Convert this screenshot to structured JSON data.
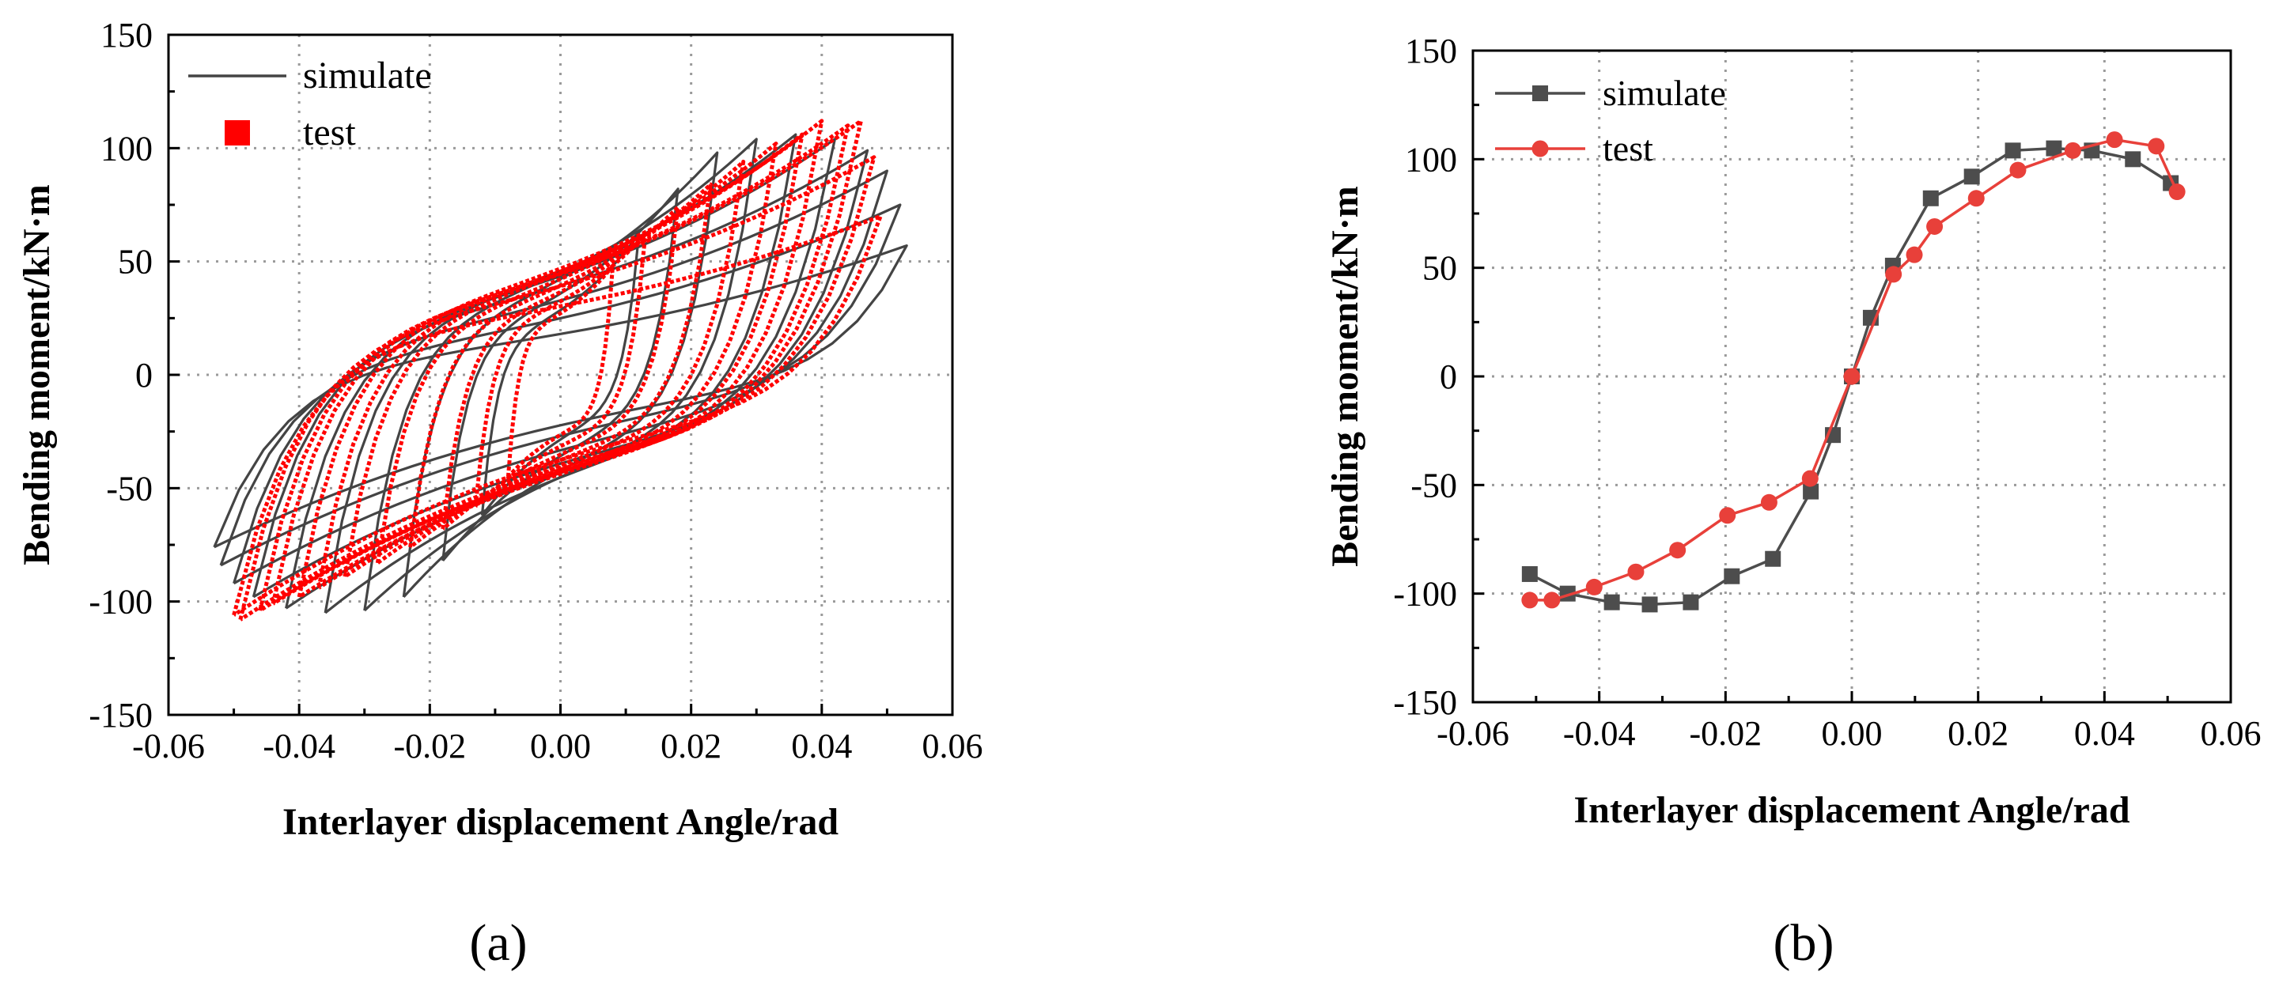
{
  "figure": {
    "label_a": "(a)",
    "label_b": "(b)"
  },
  "chart_data": [
    {
      "type": "line",
      "subtype": "hysteresis",
      "title": "",
      "xlabel": "Interlayer displacement Angle/rad",
      "ylabel": "Bending moment/kN·m",
      "xlim": [
        -0.06,
        0.06
      ],
      "ylim": [
        -150,
        150
      ],
      "xticks": [
        -0.06,
        -0.04,
        -0.02,
        0.0,
        0.02,
        0.04,
        0.06
      ],
      "xtick_labels": [
        "-0.06",
        "-0.04",
        "-0.02",
        "0.00",
        "0.02",
        "0.04",
        "0.06"
      ],
      "yticks": [
        -150,
        -100,
        -50,
        0,
        50,
        100,
        150
      ],
      "ytick_labels": [
        "-150",
        "-100",
        "-50",
        "0",
        "50",
        "100",
        "150"
      ],
      "grid": true,
      "legend": "top-left",
      "legend_entries": [
        "simulate",
        "test"
      ],
      "series": [
        {
          "name": "simulate",
          "color": "#444444",
          "marker": "none",
          "loops": [
            {
              "xp": 0.012,
              "yp": 62,
              "yk": 20,
              "xn": -0.012,
              "yn": -62
            },
            {
              "xp": 0.018,
              "yp": 82,
              "yk": 24,
              "xn": -0.018,
              "yn": -82
            },
            {
              "xp": 0.024,
              "yp": 98,
              "yk": 28,
              "xn": -0.024,
              "yn": -98
            },
            {
              "xp": 0.03,
              "yp": 104,
              "yk": 30,
              "xn": -0.03,
              "yn": -104
            },
            {
              "xp": 0.036,
              "yp": 106,
              "yk": 30,
              "xn": -0.036,
              "yn": -105
            },
            {
              "xp": 0.042,
              "yp": 104,
              "yk": 28,
              "xn": -0.042,
              "yn": -103
            },
            {
              "xp": 0.047,
              "yp": 99,
              "yk": 24,
              "xn": -0.047,
              "yn": -98
            },
            {
              "xp": 0.05,
              "yp": 90,
              "yk": 18,
              "xn": -0.05,
              "yn": -92
            },
            {
              "xp": 0.052,
              "yp": 75,
              "yk": 12,
              "xn": -0.052,
              "yn": -84
            },
            {
              "xp": 0.053,
              "yp": 57,
              "yk": 8,
              "xn": -0.053,
              "yn": -76
            }
          ]
        },
        {
          "name": "test",
          "color": "#ff0000",
          "marker": "square",
          "loops": [
            {
              "xp": 0.008,
              "yp": 48,
              "yk": 22,
              "xn": -0.008,
              "yn": -45
            },
            {
              "xp": 0.013,
              "yp": 62,
              "yk": 25,
              "xn": -0.013,
              "yn": -58
            },
            {
              "xp": 0.018,
              "yp": 74,
              "yk": 27,
              "xn": -0.018,
              "yn": -68
            },
            {
              "xp": 0.023,
              "yp": 84,
              "yk": 28,
              "xn": -0.023,
              "yn": -76
            },
            {
              "xp": 0.028,
              "yp": 94,
              "yk": 29,
              "xn": -0.028,
              "yn": -83
            },
            {
              "xp": 0.033,
              "yp": 102,
              "yk": 30,
              "xn": -0.033,
              "yn": -89
            },
            {
              "xp": 0.037,
              "yp": 106,
              "yk": 30,
              "xn": -0.037,
              "yn": -94
            },
            {
              "xp": 0.04,
              "yp": 112,
              "yk": 30,
              "xn": -0.04,
              "yn": -98
            },
            {
              "xp": 0.044,
              "yp": 110,
              "yk": 28,
              "xn": -0.044,
              "yn": -101
            },
            {
              "xp": 0.046,
              "yp": 112,
              "yk": 27,
              "xn": -0.046,
              "yn": -104
            },
            {
              "xp": 0.048,
              "yp": 96,
              "yk": 24,
              "xn": -0.049,
              "yn": -108
            },
            {
              "xp": 0.049,
              "yp": 70,
              "yk": 20,
              "xn": -0.05,
              "yn": -106
            }
          ]
        }
      ]
    },
    {
      "type": "line",
      "subtype": "skeleton",
      "title": "",
      "xlabel": "Interlayer displacement Angle/rad",
      "ylabel": "Bending moment/kN·m",
      "xlim": [
        -0.06,
        0.06
      ],
      "ylim": [
        -150,
        150
      ],
      "xticks": [
        -0.06,
        -0.04,
        -0.02,
        0.0,
        0.02,
        0.04,
        0.06
      ],
      "xtick_labels": [
        "-0.06",
        "-0.04",
        "-0.02",
        "0.00",
        "0.02",
        "0.04",
        "0.06"
      ],
      "yticks": [
        -150,
        -100,
        -50,
        0,
        50,
        100,
        150
      ],
      "ytick_labels": [
        "-150",
        "-100",
        "-50",
        "0",
        "50",
        "100",
        "150"
      ],
      "grid": true,
      "legend": "top-left",
      "legend_entries": [
        "simulate",
        "test"
      ],
      "series": [
        {
          "name": "simulate",
          "color": "#4d4d4d",
          "marker": "square",
          "x": [
            -0.051,
            -0.045,
            -0.038,
            -0.032,
            -0.0255,
            -0.019,
            -0.0125,
            -0.0065,
            -0.003,
            0.0,
            0.003,
            0.0065,
            0.0125,
            0.019,
            0.0255,
            0.032,
            0.038,
            0.0445,
            0.0505
          ],
          "y": [
            -91,
            -100,
            -104,
            -105,
            -104,
            -92,
            -84,
            -53,
            -27,
            0,
            27,
            51,
            82,
            92,
            104,
            105,
            104,
            100,
            89
          ]
        },
        {
          "name": "test",
          "color": "#e8403a",
          "marker": "circle",
          "x": [
            -0.051,
            -0.0475,
            -0.0408,
            -0.0342,
            -0.0276,
            -0.0197,
            -0.0131,
            -0.0066,
            0.0,
            0.0066,
            0.0099,
            0.0131,
            0.0197,
            0.0263,
            0.035,
            0.0416,
            0.0482,
            0.0515
          ],
          "y": [
            -103,
            -103,
            -97,
            -90,
            -80,
            -64,
            -58,
            -47,
            0,
            47,
            56,
            69,
            82,
            95,
            104,
            109,
            106,
            85
          ]
        }
      ]
    }
  ]
}
